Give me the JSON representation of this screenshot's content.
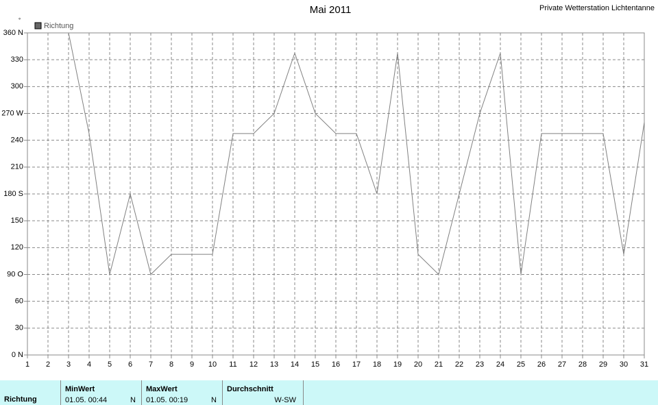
{
  "chart_data": {
    "type": "line",
    "title": "Mai 2011",
    "subtitle": "Private Wetterstation Lichtentanne",
    "y_label": "°",
    "x": [
      1,
      2,
      3,
      4,
      5,
      6,
      7,
      8,
      9,
      10,
      11,
      12,
      13,
      14,
      15,
      16,
      17,
      18,
      19,
      20,
      21,
      22,
      23,
      24,
      25,
      26,
      27,
      28,
      29,
      30,
      31
    ],
    "series": [
      {
        "name": "Richtung",
        "color": "#808080",
        "values": [
          null,
          null,
          360,
          247.5,
          90,
          180,
          90,
          112.5,
          112.5,
          112.5,
          247.5,
          247.5,
          270,
          337.5,
          270,
          247.5,
          247.5,
          180,
          337.5,
          112.5,
          90,
          180,
          270,
          337.5,
          90,
          247.5,
          247.5,
          247.5,
          247.5,
          112.5,
          260
        ]
      }
    ],
    "xlim": [
      1,
      31
    ],
    "xticks": [
      1,
      2,
      3,
      4,
      5,
      6,
      7,
      8,
      9,
      10,
      11,
      12,
      13,
      14,
      15,
      16,
      17,
      18,
      19,
      20,
      21,
      22,
      23,
      24,
      25,
      26,
      27,
      28,
      29,
      30,
      31
    ],
    "ylim": [
      0,
      360
    ],
    "yticks": [
      {
        "value": 0,
        "label": "0 N"
      },
      30,
      60,
      {
        "value": 90,
        "label": "90 O"
      },
      120,
      150,
      {
        "value": 180,
        "label": "180 S"
      },
      210,
      240,
      {
        "value": 270,
        "label": "270 W"
      },
      300,
      330,
      {
        "value": 360,
        "label": "360 N"
      }
    ],
    "grid": true
  },
  "summary": {
    "row_label": "Richtung",
    "columns": [
      {
        "header": "MinWert",
        "value": "01.05.  00:44",
        "direction": "N"
      },
      {
        "header": "MaxWert",
        "value": "01.05.  00:19",
        "direction": "N"
      },
      {
        "header": "Durchschnitt",
        "value": "W-SW"
      }
    ]
  }
}
